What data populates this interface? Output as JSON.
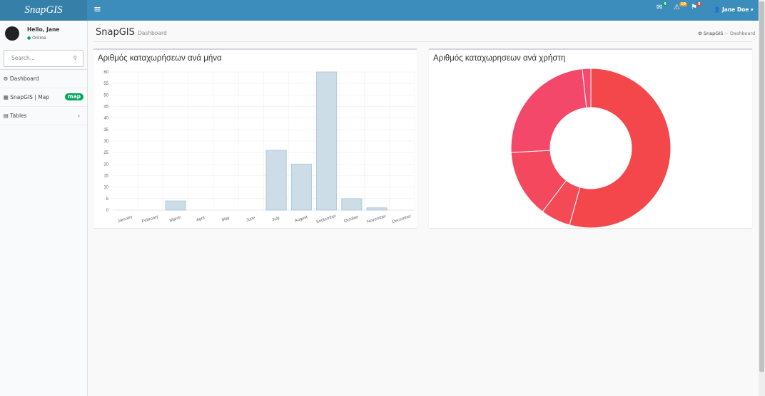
{
  "header": {
    "logo": "SnapGIS",
    "badges": [
      4,
      10,
      9
    ],
    "user": "Jane Doe"
  },
  "sidebar": {
    "greeting": "Hello, Jane",
    "status": "Online",
    "search": "Search...",
    "menu": [
      {
        "label": "Dashboard"
      },
      {
        "label": "SnapGIS | Map",
        "badge": "map"
      },
      {
        "label": "Tables"
      }
    ]
  },
  "content_header": {
    "title": "SnapGIS",
    "subtitle": "Dashboard",
    "breadcrumb": [
      "SnapGIS",
      "Dashboard"
    ]
  },
  "chart_data": [
    {
      "type": "bar",
      "title": "Αριθμός καταχωρήσεων ανά μήνα",
      "categories": [
        "January",
        "February",
        "March",
        "April",
        "May",
        "June",
        "July",
        "August",
        "September",
        "October",
        "November",
        "December"
      ],
      "values": [
        0,
        0,
        4,
        0,
        0,
        0,
        26,
        20,
        60,
        5,
        1,
        0
      ],
      "color": "#cddde8",
      "ylim": [
        0,
        60
      ],
      "yticks": [
        0,
        5,
        10,
        15,
        20,
        25,
        30,
        35,
        40,
        45,
        50,
        55,
        60
      ],
      "grid": true
    },
    {
      "type": "doughnut",
      "title": "Αριθμός καταχωρησεων ανά χρήστη",
      "values": [
        63,
        7,
        16,
        28,
        2
      ],
      "colors": [
        "#f4474c",
        "#f44a56",
        "#f4485e",
        "#f4486a",
        "#f44b6f"
      ]
    }
  ]
}
